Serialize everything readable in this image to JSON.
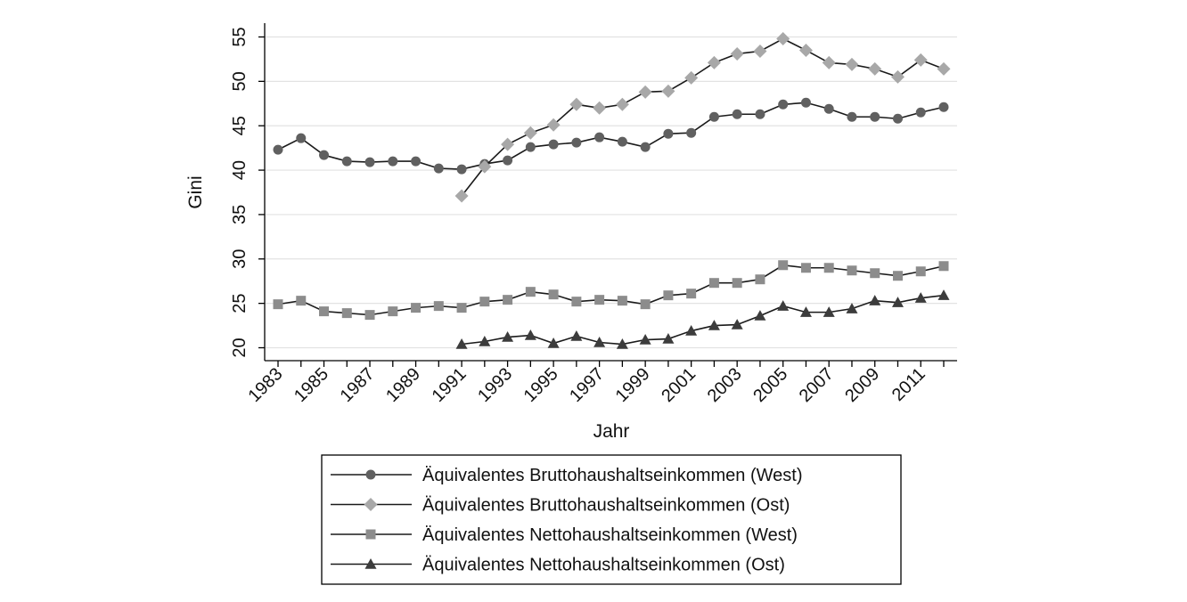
{
  "chart_data": {
    "type": "line",
    "xlabel": "Jahr",
    "ylabel": "Gini",
    "xlim": [
      1983,
      2012
    ],
    "ylim": [
      20,
      55
    ],
    "x_ticks": [
      "1983",
      "1985",
      "1987",
      "1989",
      "1991",
      "1993",
      "1995",
      "1997",
      "1999",
      "2001",
      "2003",
      "2005",
      "2007",
      "2009",
      "2011"
    ],
    "y_ticks": [
      "20",
      "25",
      "30",
      "35",
      "40",
      "45",
      "50",
      "55"
    ],
    "grid": true,
    "legend_position": "bottom",
    "series": [
      {
        "name": "Äquivalentes Bruttohaushaltseinkommen (West)",
        "marker": "circle",
        "color": "#606060",
        "points": [
          [
            1983,
            42.3
          ],
          [
            1984,
            43.6
          ],
          [
            1985,
            41.7
          ],
          [
            1986,
            41.0
          ],
          [
            1987,
            40.9
          ],
          [
            1988,
            41.0
          ],
          [
            1989,
            41.0
          ],
          [
            1990,
            40.2
          ],
          [
            1991,
            40.1
          ],
          [
            1992,
            40.7
          ],
          [
            1993,
            41.1
          ],
          [
            1994,
            42.6
          ],
          [
            1995,
            42.9
          ],
          [
            1996,
            43.1
          ],
          [
            1997,
            43.7
          ],
          [
            1998,
            43.2
          ],
          [
            1999,
            42.6
          ],
          [
            2000,
            44.1
          ],
          [
            2001,
            44.2
          ],
          [
            2002,
            46.0
          ],
          [
            2003,
            46.3
          ],
          [
            2004,
            46.3
          ],
          [
            2005,
            47.4
          ],
          [
            2006,
            47.6
          ],
          [
            2007,
            46.9
          ],
          [
            2008,
            46.0
          ],
          [
            2009,
            46.0
          ],
          [
            2010,
            45.8
          ],
          [
            2011,
            46.5
          ],
          [
            2012,
            47.1
          ]
        ]
      },
      {
        "name": "Äquivalentes Bruttohaushaltseinkommen (Ost)",
        "marker": "diamond",
        "color": "#a8a8a8",
        "points": [
          [
            1991,
            37.1
          ],
          [
            1992,
            40.4
          ],
          [
            1993,
            42.9
          ],
          [
            1994,
            44.2
          ],
          [
            1995,
            45.1
          ],
          [
            1996,
            47.4
          ],
          [
            1997,
            47.0
          ],
          [
            1998,
            47.4
          ],
          [
            1999,
            48.8
          ],
          [
            2000,
            48.9
          ],
          [
            2001,
            50.4
          ],
          [
            2002,
            52.1
          ],
          [
            2003,
            53.1
          ],
          [
            2004,
            53.4
          ],
          [
            2005,
            54.8
          ],
          [
            2006,
            53.5
          ],
          [
            2007,
            52.1
          ],
          [
            2008,
            51.9
          ],
          [
            2009,
            51.4
          ],
          [
            2010,
            50.5
          ],
          [
            2011,
            52.4
          ],
          [
            2012,
            51.4
          ]
        ]
      },
      {
        "name": "Äquivalentes Nettohaushaltseinkommen (West)",
        "marker": "square",
        "color": "#8c8c8c",
        "points": [
          [
            1983,
            24.9
          ],
          [
            1984,
            25.3
          ],
          [
            1985,
            24.1
          ],
          [
            1986,
            23.9
          ],
          [
            1987,
            23.7
          ],
          [
            1988,
            24.1
          ],
          [
            1989,
            24.5
          ],
          [
            1990,
            24.7
          ],
          [
            1991,
            24.5
          ],
          [
            1992,
            25.2
          ],
          [
            1993,
            25.4
          ],
          [
            1994,
            26.3
          ],
          [
            1995,
            26.0
          ],
          [
            1996,
            25.2
          ],
          [
            1997,
            25.4
          ],
          [
            1998,
            25.3
          ],
          [
            1999,
            24.9
          ],
          [
            2000,
            25.9
          ],
          [
            2001,
            26.1
          ],
          [
            2002,
            27.3
          ],
          [
            2003,
            27.3
          ],
          [
            2004,
            27.7
          ],
          [
            2005,
            29.3
          ],
          [
            2006,
            29.0
          ],
          [
            2007,
            29.0
          ],
          [
            2008,
            28.7
          ],
          [
            2009,
            28.4
          ],
          [
            2010,
            28.1
          ],
          [
            2011,
            28.6
          ],
          [
            2012,
            29.2
          ]
        ]
      },
      {
        "name": "Äquivalentes Nettohaushaltseinkommen (Ost)",
        "marker": "triangle",
        "color": "#3c3c3c",
        "points": [
          [
            1991,
            20.4
          ],
          [
            1992,
            20.7
          ],
          [
            1993,
            21.2
          ],
          [
            1994,
            21.4
          ],
          [
            1995,
            20.5
          ],
          [
            1996,
            21.3
          ],
          [
            1997,
            20.6
          ],
          [
            1998,
            20.4
          ],
          [
            1999,
            20.9
          ],
          [
            2000,
            21.0
          ],
          [
            2001,
            21.9
          ],
          [
            2002,
            22.5
          ],
          [
            2003,
            22.6
          ],
          [
            2004,
            23.6
          ],
          [
            2005,
            24.7
          ],
          [
            2006,
            24.0
          ],
          [
            2007,
            24.0
          ],
          [
            2008,
            24.4
          ],
          [
            2009,
            25.3
          ],
          [
            2010,
            25.1
          ],
          [
            2011,
            25.6
          ],
          [
            2012,
            25.9
          ]
        ]
      }
    ]
  }
}
